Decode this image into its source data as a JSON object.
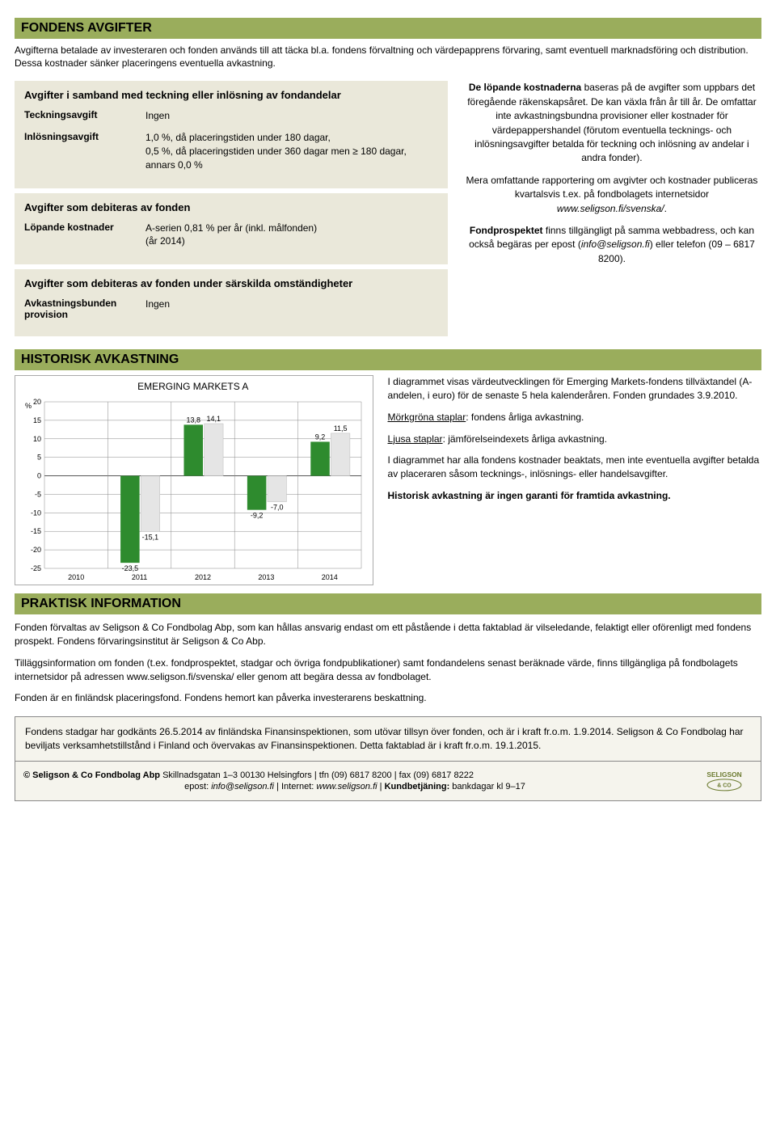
{
  "sections": {
    "fees_title": "FONDENS AVGIFTER",
    "history_title": "HISTORISK AVKASTNING",
    "practical_title": "PRAKTISK INFORMATION"
  },
  "intro": "Avgifterna betalade av investeraren och fonden används till att täcka bl.a. fondens förvaltning och värdepapprens förvaring, samt eventuell marknadsföring och distribution. Dessa kostnader sänker placeringens eventuella avkastning.",
  "box1": {
    "title": "Avgifter i samband med teckning eller inlösning av fondandelar",
    "r1_label": "Teckningsavgift",
    "r1_value": "Ingen",
    "r2_label": "Inlösningsavgift",
    "r2_value": "1,0 %, då placeringstiden under 180 dagar,\n0,5 %, då placeringstiden under 360 dagar men ≥ 180 dagar,\nannars 0,0 %"
  },
  "box2": {
    "title": "Avgifter som debiteras av fonden",
    "r1_label": "Löpande kostnader",
    "r1_value": "A-serien 0,81 % per år (inkl. målfonden)\n(år 2014)"
  },
  "box3": {
    "title": "Avgifter som debiteras av fonden under särskilda omständigheter",
    "r1_label": "Avkastningsbunden provision",
    "r1_value": "Ingen"
  },
  "right_text": {
    "p1a": "De löpande kostnaderna",
    "p1b": " baseras på de avgifter som uppbars det föregående räkenskapsåret. De kan växla från år till år. De omfattar inte avkastningsbundna provisioner eller kostnader för värdepappershandel (förutom eventuella tecknings- och inlösningsavgifter betalda för teckning och inlösning av andelar i andra fonder).",
    "p2a": "Mera omfattande rapportering om avgivter och kostnader publiceras kvartalsvis t.ex. på fondbolagets internetsidor ",
    "p2b": "www.seligson.fi/svenska/",
    "p2c": ".",
    "p3a": "Fondprospektet",
    "p3b": " finns tillgängligt på samma webbadress, och kan också begäras per epost (",
    "p3c": "info@seligson.fi",
    "p3d": ") eller telefon (09 – 6817 8200)."
  },
  "chart": {
    "title": "EMERGING MARKETS A",
    "y_label": "%",
    "years": [
      "2010",
      "2011",
      "2012",
      "2013",
      "2014"
    ],
    "fund_values": [
      null,
      -23.5,
      13.8,
      -9.2,
      9.2
    ],
    "index_values": [
      null,
      -15.1,
      14.1,
      -7.0,
      11.5
    ],
    "ylim": [
      -25,
      20
    ],
    "ytick_step": 5,
    "fund_color": "#2e8b2e",
    "index_color": "#e5e5e5",
    "grid_color": "#888888",
    "text_color": "#000000",
    "bar_label_fontsize": 9,
    "axis_fontsize": 9
  },
  "chart_side": {
    "p1": "I diagrammet visas värdeutvecklingen för Emerging Markets-fondens tillväxtandel (A-andelen, i euro) för de senaste 5 hela kalenderåren. Fonden grundades 3.9.2010.",
    "p2a": "Mörkgröna staplar",
    "p2b": ": fondens årliga avkastning.",
    "p3a": "Ljusa staplar",
    "p3b": ": jämförelseindexets årliga avkastning.",
    "p4": "I diagrammet har alla fondens kostnader beaktats, men inte eventuella avgifter betalda av placeraren såsom tecknings-, inlösnings- eller handelsavgifter.",
    "p5a": "Historisk avkastning är ingen garanti för framtida avkastning."
  },
  "practical": {
    "p1": "Fonden förvaltas av Seligson & Co Fondbolag Abp, som kan hållas ansvarig endast om ett påstående i detta faktablad är vilseledande, felaktigt eller oförenligt med fondens prospekt. Fondens förvaringsinstitut är Seligson & Co Abp.",
    "p2": "Tilläggsinformation om fonden (t.ex. fondprospektet, stadgar och övriga fondpublikationer) samt fondandelens senast beräknade värde, finns tillgängliga på fondbolagets internetsidor på adressen www.seligson.fi/svenska/ eller genom att begära dessa av fondbolaget.",
    "p3": "Fonden är en finländsk placeringsfond. Fondens hemort kan påverka investerarens beskattning."
  },
  "footer": {
    "top": "Fondens stadgar har godkänts 26.5.2014 av finländska Finansinspektionen, som utövar tillsyn över fonden, och är i kraft fr.o.m. 1.9.2014. Seligson & Co Fondbolag har beviljats verksamhetstillstånd i Finland och övervakas av Finansinspektionen. Detta faktablad är i kraft fr.o.m. 19.1.2015.",
    "line1a": "© Seligson & Co Fondbolag Abp",
    "line1b": "  Skillnadsgatan 1–3 00130 Helsingfors | tfn (09) 6817 8200 | fax (09) 6817 8222",
    "line2a": "epost: ",
    "line2b": "info@seligson.fi",
    "line2c": " | Internet: ",
    "line2d": "www.seligson.fi",
    "line2e": " | ",
    "line2f": "Kundbetjäning:",
    "line2g": " bankdagar kl 9–17",
    "logo_top": "SELIGSON",
    "logo_bottom": "& CO"
  }
}
